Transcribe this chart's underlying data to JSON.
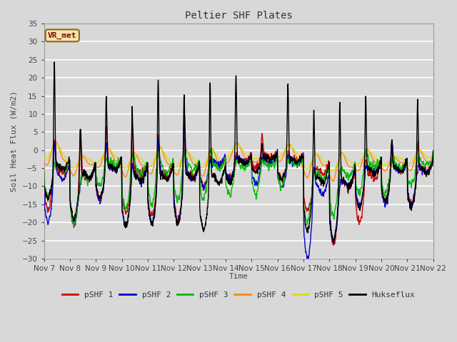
{
  "title": "Peltier SHF Plates",
  "xlabel": "Time",
  "ylabel": "Soil Heat Flux (W/m2)",
  "ylim": [
    -30,
    35
  ],
  "background_color": "#d8d8d8",
  "series_colors": {
    "pSHF 1": "#cc0000",
    "pSHF 2": "#0000cc",
    "pSHF 3": "#00bb00",
    "pSHF 4": "#ff8800",
    "pSHF 5": "#dddd00",
    "Hukseflux": "#000000"
  },
  "xtick_labels": [
    "Nov 7",
    "Nov 8",
    "Nov 9",
    "Nov 10",
    "Nov 11",
    "Nov 12",
    "Nov 13",
    "Nov 14",
    "Nov 15",
    "Nov 16",
    "Nov 17",
    "Nov 18",
    "Nov 19",
    "Nov 20",
    "Nov 21",
    "Nov 22"
  ],
  "ytick_values": [
    -30,
    -25,
    -20,
    -15,
    -10,
    -5,
    0,
    5,
    10,
    15,
    20,
    25,
    30,
    35
  ],
  "annotation_text": "VR_met",
  "n_points": 1500
}
